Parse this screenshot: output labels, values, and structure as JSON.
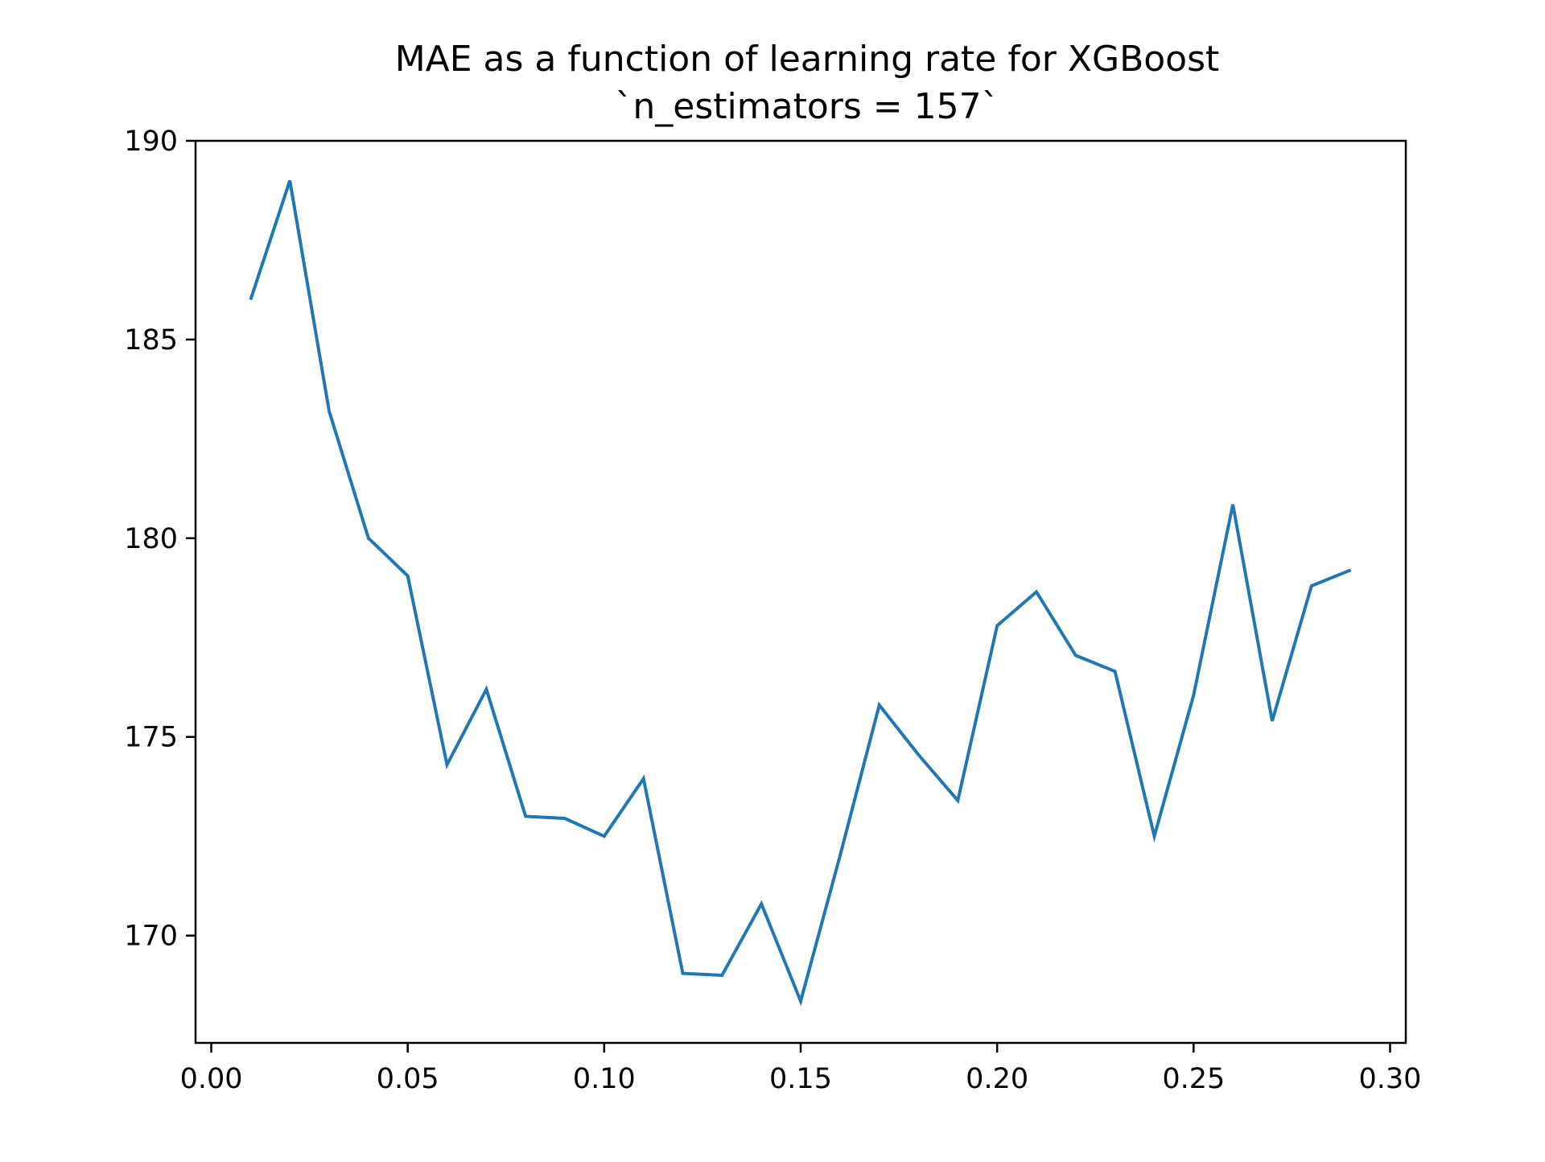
{
  "chart_data": {
    "type": "line",
    "title": "MAE as a function of learning rate for XGBoost",
    "subtitle": "`n_estimators = 157`",
    "xlabel": "",
    "ylabel": "",
    "xlim": [
      -0.004,
      0.304
    ],
    "ylim": [
      167.3,
      190.0
    ],
    "x_ticks": [
      0.0,
      0.05,
      0.1,
      0.15,
      0.2,
      0.25,
      0.3
    ],
    "x_tick_labels": [
      "0.00",
      "0.05",
      "0.10",
      "0.15",
      "0.20",
      "0.25",
      "0.30"
    ],
    "y_ticks": [
      170,
      175,
      180,
      185,
      190
    ],
    "y_tick_labels": [
      "170",
      "175",
      "180",
      "185",
      "190"
    ],
    "grid": false,
    "series": [
      {
        "color": "#1f77b4",
        "x": [
          0.01,
          0.02,
          0.03,
          0.04,
          0.05,
          0.06,
          0.07,
          0.08,
          0.09,
          0.1,
          0.11,
          0.12,
          0.13,
          0.14,
          0.15,
          0.16,
          0.17,
          0.18,
          0.19,
          0.2,
          0.21,
          0.22,
          0.23,
          0.24,
          0.25,
          0.26,
          0.27,
          0.28,
          0.29
        ],
        "y": [
          186.0,
          189.0,
          183.2,
          180.0,
          179.05,
          174.3,
          176.2,
          173.0,
          172.95,
          172.5,
          173.95,
          169.05,
          169.0,
          170.8,
          168.35,
          172.0,
          175.8,
          174.55,
          173.4,
          177.8,
          178.65,
          177.05,
          176.65,
          172.5,
          176.05,
          180.85,
          175.4,
          178.8,
          179.2
        ]
      }
    ]
  }
}
